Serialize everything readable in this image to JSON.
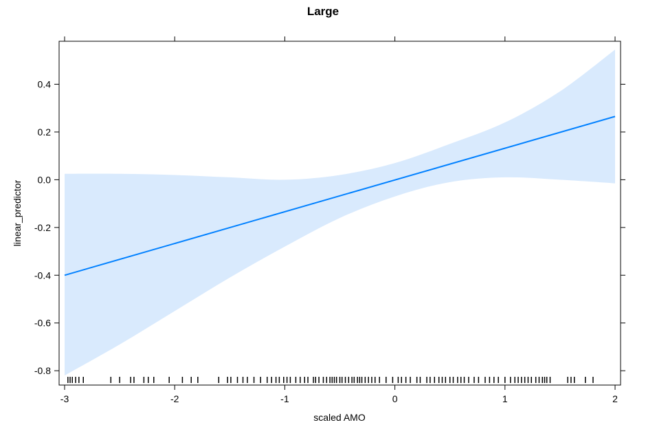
{
  "chart_data": {
    "type": "line",
    "title": "Large",
    "xlabel": "scaled AMO",
    "ylabel": "linear_predictor",
    "xlim": [
      -3.05,
      2.05
    ],
    "ylim": [
      -0.86,
      0.58
    ],
    "x_ticks": [
      -3,
      -2,
      -1,
      0,
      1,
      2
    ],
    "x_tick_labels": [
      "-3",
      "-2",
      "-1",
      "0",
      "1",
      "2"
    ],
    "y_ticks": [
      -0.8,
      -0.6,
      -0.4,
      -0.2,
      0.0,
      0.2,
      0.4
    ],
    "y_tick_labels": [
      "-0.8",
      "-0.6",
      "-0.4",
      "-0.2",
      "0.0",
      "0.2",
      "0.4"
    ],
    "grid": false,
    "colors": {
      "line": "#0080ff",
      "band": "#d9eafd",
      "rug": "#000000",
      "frame": "#000000"
    },
    "series": [
      {
        "x": [
          -3,
          2
        ],
        "y": [
          -0.4,
          0.265
        ]
      }
    ],
    "confidence_band": {
      "x": [
        -3.0,
        -2.5,
        -2.0,
        -1.5,
        -1.0,
        -0.5,
        0.0,
        0.5,
        1.0,
        1.5,
        2.0
      ],
      "lower": [
        -0.82,
        -0.69,
        -0.55,
        -0.41,
        -0.28,
        -0.16,
        -0.07,
        -0.01,
        0.01,
        -0.0,
        -0.015
      ],
      "upper": [
        0.025,
        0.025,
        0.02,
        0.01,
        0.0,
        0.02,
        0.07,
        0.15,
        0.24,
        0.37,
        0.545
      ]
    },
    "rug": [
      -2.97,
      -2.95,
      -2.93,
      -2.9,
      -2.87,
      -2.83,
      -2.58,
      -2.5,
      -2.4,
      -2.37,
      -2.28,
      -2.24,
      -2.19,
      -2.05,
      -1.93,
      -1.85,
      -1.79,
      -1.6,
      -1.52,
      -1.49,
      -1.43,
      -1.38,
      -1.34,
      -1.28,
      -1.22,
      -1.16,
      -1.12,
      -1.08,
      -1.05,
      -1.01,
      -0.98,
      -0.95,
      -0.9,
      -0.86,
      -0.82,
      -0.79,
      -0.74,
      -0.72,
      -0.69,
      -0.65,
      -0.62,
      -0.59,
      -0.57,
      -0.55,
      -0.53,
      -0.5,
      -0.48,
      -0.45,
      -0.42,
      -0.39,
      -0.37,
      -0.34,
      -0.32,
      -0.3,
      -0.27,
      -0.24,
      -0.21,
      -0.18,
      -0.14,
      -0.08,
      -0.02,
      0.03,
      0.06,
      0.1,
      0.14,
      0.2,
      0.23,
      0.29,
      0.32,
      0.36,
      0.4,
      0.43,
      0.46,
      0.5,
      0.53,
      0.57,
      0.6,
      0.63,
      0.67,
      0.72,
      0.76,
      0.82,
      0.86,
      0.9,
      0.94,
      1.0,
      1.05,
      1.09,
      1.12,
      1.15,
      1.18,
      1.21,
      1.24,
      1.28,
      1.31,
      1.34,
      1.36,
      1.38,
      1.41,
      1.57,
      1.6,
      1.63,
      1.73,
      1.8
    ]
  }
}
